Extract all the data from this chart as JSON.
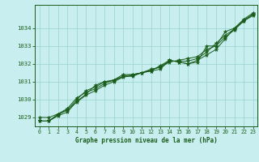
{
  "title": "Graphe pression niveau de la mer (hPa)",
  "background_color": "#c8eef0",
  "plot_bg_color": "#c8eef0",
  "grid_color": "#96d4c8",
  "line_color": "#1a5c1a",
  "marker_color": "#1a5c1a",
  "xlim": [
    -0.5,
    23.5
  ],
  "ylim": [
    1028.5,
    1035.3
  ],
  "yticks": [
    1029,
    1030,
    1031,
    1032,
    1033,
    1034
  ],
  "xtick_labels": [
    "0",
    "1",
    "2",
    "3",
    "4",
    "5",
    "6",
    "7",
    "8",
    "9",
    "10",
    "11",
    "12",
    "13",
    "14",
    "15",
    "16",
    "17",
    "18",
    "19",
    "20",
    "21",
    "22",
    "23"
  ],
  "series": [
    [
      1029.0,
      1029.0,
      1029.2,
      1029.4,
      1030.0,
      1030.5,
      1030.7,
      1031.0,
      1031.1,
      1031.4,
      1031.4,
      1031.5,
      1031.6,
      1031.7,
      1032.2,
      1032.1,
      1032.0,
      1032.1,
      1033.0,
      1033.0,
      1033.8,
      1034.0,
      1034.5,
      1034.85
    ],
    [
      1028.8,
      1028.8,
      1029.2,
      1029.5,
      1030.1,
      1030.4,
      1030.6,
      1030.9,
      1031.1,
      1031.3,
      1031.3,
      1031.5,
      1031.7,
      1031.8,
      1032.1,
      1032.2,
      1032.3,
      1032.4,
      1032.8,
      1033.0,
      1033.5,
      1033.9,
      1034.4,
      1034.7
    ],
    [
      1028.8,
      1028.8,
      1029.1,
      1029.3,
      1029.9,
      1030.3,
      1030.8,
      1031.0,
      1031.05,
      1031.3,
      1031.4,
      1031.5,
      1031.6,
      1031.9,
      1032.2,
      1032.1,
      1032.0,
      1032.2,
      1032.5,
      1032.8,
      1033.4,
      1034.0,
      1034.4,
      1034.8
    ],
    [
      1028.8,
      1028.8,
      1029.15,
      1029.45,
      1029.85,
      1030.25,
      1030.5,
      1030.8,
      1031.0,
      1031.25,
      1031.35,
      1031.5,
      1031.65,
      1031.85,
      1032.15,
      1032.15,
      1032.15,
      1032.3,
      1032.65,
      1033.15,
      1033.6,
      1033.95,
      1034.45,
      1034.75
    ]
  ]
}
